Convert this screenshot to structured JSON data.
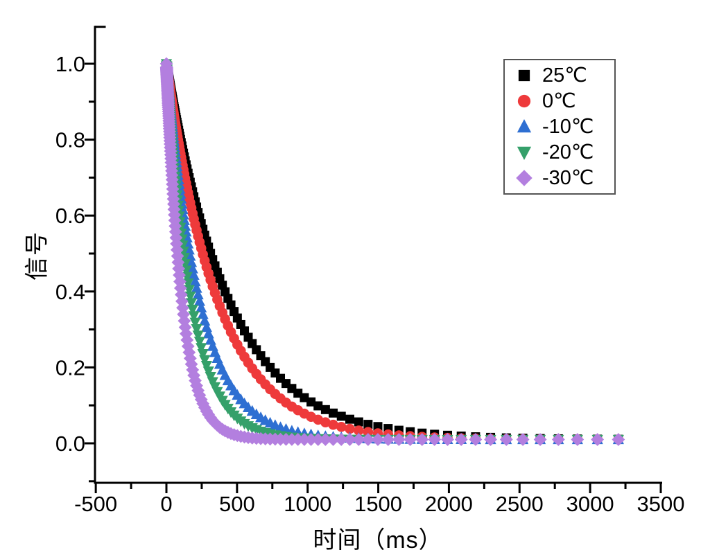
{
  "page": {
    "background": "#ffffff"
  },
  "chart_data": {
    "type": "scatter",
    "title": "",
    "xlabel": "时间（ms）",
    "ylabel": "信号",
    "grid": false,
    "legend_position": "top-right",
    "legend_border_color": "#545454",
    "axis_color": "#000000",
    "x_axis": {
      "min": -510,
      "max": 3510,
      "major_ticks": [
        -500,
        0,
        500,
        1000,
        1500,
        2000,
        2500,
        3000,
        3500
      ],
      "minor_ticks": [
        -250,
        250,
        750,
        1250,
        1750,
        2250,
        2750,
        3250
      ]
    },
    "y_axis": {
      "min": -0.104,
      "max": 1.104,
      "major_ticks": [
        0.0,
        0.2,
        0.4,
        0.6,
        0.8,
        1.0
      ],
      "tick_labels": [
        "0.0",
        "0.2",
        "0.4",
        "0.6",
        "0.8",
        "1.0"
      ],
      "minor_ticks": [
        -0.1,
        0.1,
        0.3,
        0.5,
        0.7,
        0.9
      ],
      "top_end_cap": 1.1
    },
    "model": "v(t) = amplitude * exp(-t / tau_ms) + offset",
    "sampling": {
      "mode": "log",
      "t_min_ms": 1,
      "t_max_ms": 3200,
      "n_points": 170,
      "include_zero": true
    },
    "readings_t_ms": [
      0,
      100,
      200,
      300,
      400,
      500,
      750,
      1000,
      1250,
      1500,
      2000,
      2500,
      3000,
      3200
    ],
    "series": [
      {
        "label": "25℃",
        "color": "#000000",
        "marker": "square",
        "tau_ms": 445,
        "amplitude": 0.99,
        "offset": 0.01,
        "readings_v": [
          1.0,
          0.801,
          0.642,
          0.514,
          0.413,
          0.332,
          0.194,
          0.115,
          0.07,
          0.044,
          0.021,
          0.014,
          0.011,
          0.011
        ]
      },
      {
        "label": "0℃",
        "color": "#ee3a3b",
        "marker": "circle",
        "tau_ms": 365,
        "amplitude": 0.99,
        "offset": 0.01,
        "readings_v": [
          1.0,
          0.763,
          0.582,
          0.445,
          0.341,
          0.262,
          0.137,
          0.074,
          0.042,
          0.026,
          0.014,
          0.011,
          0.01,
          0.01
        ]
      },
      {
        "label": "-10℃",
        "color": "#2e6fd2",
        "marker": "triangle-up",
        "tau_ms": 235,
        "amplitude": 0.99,
        "offset": 0.01,
        "readings_v": [
          1.0,
          0.657,
          0.433,
          0.286,
          0.19,
          0.128,
          0.051,
          0.024,
          0.015,
          0.012,
          0.01,
          0.01,
          0.01,
          0.01
        ]
      },
      {
        "label": "-20℃",
        "color": "#35a06a",
        "marker": "triangle-down",
        "tau_ms": 175,
        "amplitude": 0.99,
        "offset": 0.01,
        "readings_v": [
          1.0,
          0.569,
          0.326,
          0.188,
          0.111,
          0.067,
          0.024,
          0.013,
          0.011,
          0.01,
          0.01,
          0.01,
          0.01,
          0.01
        ]
      },
      {
        "label": "-30℃",
        "color": "#b37fdf",
        "marker": "diamond",
        "tau_ms": 110,
        "amplitude": 0.99,
        "offset": 0.01,
        "readings_v": [
          1.0,
          0.409,
          0.171,
          0.075,
          0.036,
          0.02,
          0.011,
          0.01,
          0.01,
          0.01,
          0.01,
          0.01,
          0.01,
          0.01
        ]
      }
    ]
  }
}
